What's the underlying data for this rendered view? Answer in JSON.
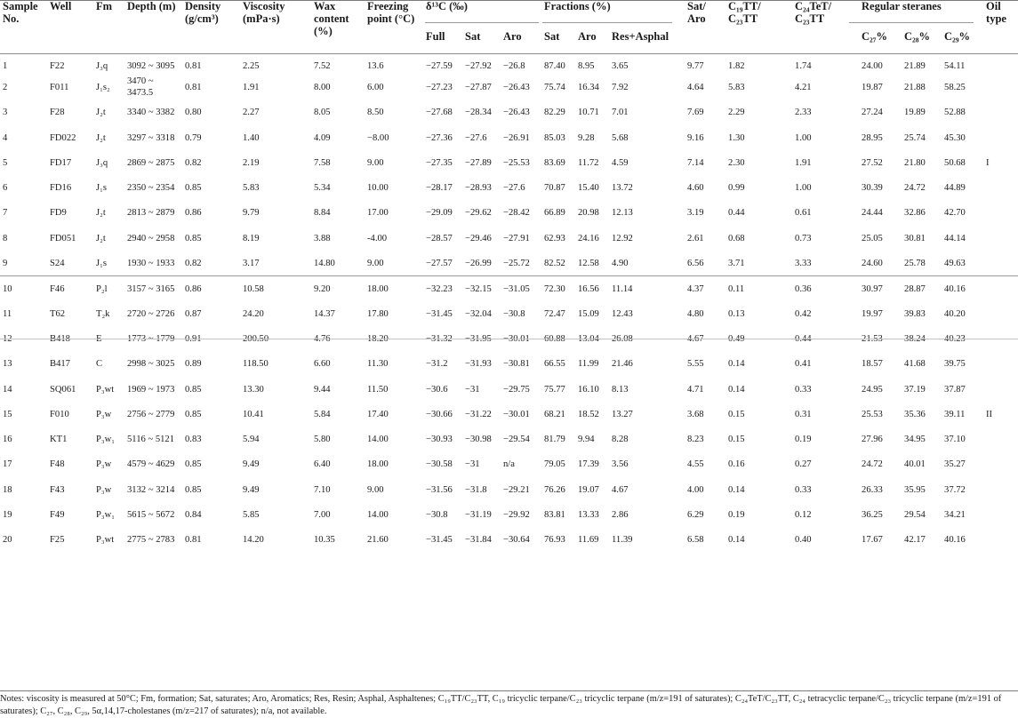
{
  "header": {
    "sample_no": "Sample No.",
    "well": "Well",
    "fm": "Fm",
    "depth": "Depth (m)",
    "density": "Density (g/cm³)",
    "viscosity": "Viscosity (mPa·s)",
    "wax": "Wax content (%)",
    "freezing": "Freezing point (°C)",
    "d13c": "δ¹³C (‰)",
    "d13c_full": "Full",
    "d13c_sat": "Sat",
    "d13c_aro": "Aro",
    "fractions": "Fractions (%)",
    "frac_sat": "Sat",
    "frac_aro": "Aro",
    "frac_res": "Res+Asphal",
    "sat_aro": "Sat/ Aro",
    "c19": "C₁₉TT/ C₂₃TT",
    "c24": "C₂₄TeT/ C₂₃TT",
    "steranes": "Regular steranes",
    "c27": "C₂₇%",
    "c28": "C₂₈%",
    "c29": "C₂₉%",
    "oil_type": "Oil type"
  },
  "rows": [
    {
      "no": "1",
      "well": "F22",
      "fm": "J₃q",
      "depth": "3092 ~ 3095",
      "density": "0.81",
      "viscosity": "2.25",
      "wax": "7.52",
      "freezing": "13.6",
      "full": "−27.59",
      "sat": "−27.92",
      "aro": "−26.8",
      "fsat": "87.40",
      "faro": "8.95",
      "fres": "3.65",
      "satAro": "9.77",
      "c19": "1.82",
      "c24": "1.74",
      "c27": "24.00",
      "c28": "21.89",
      "c29": "54.11",
      "type": ""
    },
    {
      "no": "2",
      "well": "F011",
      "fm": "J₁s₂",
      "depth": "3470 ~ 3473.5",
      "density": "0.81",
      "viscosity": "1.91",
      "wax": "8.00",
      "freezing": "6.00",
      "full": "−27.23",
      "sat": "−27.87",
      "aro": "−26.43",
      "fsat": "75.74",
      "faro": "16.34",
      "fres": "7.92",
      "satAro": "4.64",
      "c19": "5.83",
      "c24": "4.21",
      "c27": "19.87",
      "c28": "21.88",
      "c29": "58.25",
      "type": ""
    },
    {
      "no": "3",
      "well": "F28",
      "fm": "J₂t",
      "depth": "3340 ~ 3382",
      "density": "0.80",
      "viscosity": "2.27",
      "wax": "8.05",
      "freezing": "8.50",
      "full": "−27.68",
      "sat": "−28.34",
      "aro": "−26.43",
      "fsat": "82.29",
      "faro": "10.71",
      "fres": "7.01",
      "satAro": "7.69",
      "c19": "2.29",
      "c24": "2.33",
      "c27": "27.24",
      "c28": "19.89",
      "c29": "52.88",
      "type": ""
    },
    {
      "no": "4",
      "well": "FD022",
      "fm": "J₂t",
      "depth": "3297 ~ 3318",
      "density": "0.79",
      "viscosity": "1.40",
      "wax": "4.09",
      "freezing": "−8.00",
      "full": "−27.36",
      "sat": "−27.6",
      "aro": "−26.91",
      "fsat": "85.03",
      "faro": "9.28",
      "fres": "5.68",
      "satAro": "9.16",
      "c19": "1.30",
      "c24": "1.00",
      "c27": "28.95",
      "c28": "25.74",
      "c29": "45.30",
      "type": ""
    },
    {
      "no": "5",
      "well": "FD17",
      "fm": "J₃q",
      "depth": "2869 ~ 2875",
      "density": "0.82",
      "viscosity": "2.19",
      "wax": "7.58",
      "freezing": "9.00",
      "full": "−27.35",
      "sat": "−27.89",
      "aro": "−25.53",
      "fsat": "83.69",
      "faro": "11.72",
      "fres": "4.59",
      "satAro": "7.14",
      "c19": "2.30",
      "c24": "1.91",
      "c27": "27.52",
      "c28": "21.80",
      "c29": "50.68",
      "type": "I"
    },
    {
      "no": "6",
      "well": "FD16",
      "fm": "J₁s",
      "depth": "2350 ~ 2354",
      "density": "0.85",
      "viscosity": "5.83",
      "wax": "5.34",
      "freezing": "10.00",
      "full": "−28.17",
      "sat": "−28.93",
      "aro": "−27.6",
      "fsat": "70.87",
      "faro": "15.40",
      "fres": "13.72",
      "satAro": "4.60",
      "c19": "0.99",
      "c24": "1.00",
      "c27": "30.39",
      "c28": "24.72",
      "c29": "44.89",
      "type": ""
    },
    {
      "no": "7",
      "well": "FD9",
      "fm": "J₂t",
      "depth": "2813 ~ 2879",
      "density": "0.86",
      "viscosity": "9.79",
      "wax": "8.84",
      "freezing": "17.00",
      "full": "−29.09",
      "sat": "−29.62",
      "aro": "−28.42",
      "fsat": "66.89",
      "faro": "20.98",
      "fres": "12.13",
      "satAro": "3.19",
      "c19": "0.44",
      "c24": "0.61",
      "c27": "24.44",
      "c28": "32.86",
      "c29": "42.70",
      "type": ""
    },
    {
      "no": "8",
      "well": "FD051",
      "fm": "J₂t",
      "depth": "2940 ~ 2958",
      "density": "0.85",
      "viscosity": "8.19",
      "wax": "3.88",
      "freezing": "-4.00",
      "full": "−28.57",
      "sat": "−29.46",
      "aro": "−27.91",
      "fsat": "62.93",
      "faro": "24.16",
      "fres": "12.92",
      "satAro": "2.61",
      "c19": "0.68",
      "c24": "0.73",
      "c27": "25.05",
      "c28": "30.81",
      "c29": "44.14",
      "type": ""
    },
    {
      "no": "9",
      "well": "S24",
      "fm": "J₁s",
      "depth": "1930 ~ 1933",
      "density": "0.82",
      "viscosity": "3.17",
      "wax": "14.80",
      "freezing": "9.00",
      "full": "−27.57",
      "sat": "−26.99",
      "aro": "−25.72",
      "fsat": "82.52",
      "faro": "12.58",
      "fres": "4.90",
      "satAro": "6.56",
      "c19": "3.71",
      "c24": "3.33",
      "c27": "24.60",
      "c28": "25.78",
      "c29": "49.63",
      "type": ""
    },
    {
      "no": "10",
      "well": "F46",
      "fm": "P₂l",
      "depth": "3157 ~ 3165",
      "density": "0.86",
      "viscosity": "10.58",
      "wax": "9.20",
      "freezing": "18.00",
      "full": "−32.23",
      "sat": "−32.15",
      "aro": "−31.05",
      "fsat": "72.30",
      "faro": "16.56",
      "fres": "11.14",
      "satAro": "4.37",
      "c19": "0.11",
      "c24": "0.36",
      "c27": "30.97",
      "c28": "28.87",
      "c29": "40.16",
      "type": ""
    },
    {
      "no": "11",
      "well": "T62",
      "fm": "T₂k",
      "depth": "2720 ~ 2726",
      "density": "0.87",
      "viscosity": "24.20",
      "wax": "14.37",
      "freezing": "17.80",
      "full": "−31.45",
      "sat": "−32.04",
      "aro": "−30.8",
      "fsat": "72.47",
      "faro": "15.09",
      "fres": "12.43",
      "satAro": "4.80",
      "c19": "0.13",
      "c24": "0.42",
      "c27": "19.97",
      "c28": "39.83",
      "c29": "40.20",
      "type": ""
    },
    {
      "no": "12",
      "well": "B418",
      "fm": "E",
      "depth": "1773 ~ 1779",
      "density": "0.91",
      "viscosity": "200.50",
      "wax": "4.76",
      "freezing": "18.20",
      "full": "−31.32",
      "sat": "−31.95",
      "aro": "−30.01",
      "fsat": "60.88",
      "faro": "13.04",
      "fres": "26.08",
      "satAro": "4.67",
      "c19": "0.49",
      "c24": "0.44",
      "c27": "21.53",
      "c28": "38.24",
      "c29": "40.23",
      "type": ""
    },
    {
      "no": "13",
      "well": "B417",
      "fm": "C",
      "depth": "2998 ~ 3025",
      "density": "0.89",
      "viscosity": "118.50",
      "wax": "6.60",
      "freezing": "11.30",
      "full": "−31.2",
      "sat": "−31.93",
      "aro": "−30.81",
      "fsat": "66.55",
      "faro": "11.99",
      "fres": "21.46",
      "satAro": "5.55",
      "c19": "0.14",
      "c24": "0.41",
      "c27": "18.57",
      "c28": "41.68",
      "c29": "39.75",
      "type": ""
    },
    {
      "no": "14",
      "well": "SQ061",
      "fm": "P₃wt",
      "depth": "1969 ~ 1973",
      "density": "0.85",
      "viscosity": "13.30",
      "wax": "9.44",
      "freezing": "11.50",
      "full": "−30.6",
      "sat": "−31",
      "aro": "−29.75",
      "fsat": "75.77",
      "faro": "16.10",
      "fres": "8.13",
      "satAro": "4.71",
      "c19": "0.14",
      "c24": "0.33",
      "c27": "24.95",
      "c28": "37.19",
      "c29": "37.87",
      "type": ""
    },
    {
      "no": "15",
      "well": "F010",
      "fm": "P₃w",
      "depth": "2756 ~ 2779",
      "density": "0.85",
      "viscosity": "10.41",
      "wax": "5.84",
      "freezing": "17.40",
      "full": "−30.66",
      "sat": "−31.22",
      "aro": "−30.01",
      "fsat": "68.21",
      "faro": "18.52",
      "fres": "13.27",
      "satAro": "3.68",
      "c19": "0.15",
      "c24": "0.31",
      "c27": "25.53",
      "c28": "35.36",
      "c29": "39.11",
      "type": "II"
    },
    {
      "no": "16",
      "well": "KT1",
      "fm": "P₃w₁",
      "depth": "5116 ~ 5121",
      "density": "0.83",
      "viscosity": "5.94",
      "wax": "5.80",
      "freezing": "14.00",
      "full": "−30.93",
      "sat": "−30.98",
      "aro": "−29.54",
      "fsat": "81.79",
      "faro": "9.94",
      "fres": "8.28",
      "satAro": "8.23",
      "c19": "0.15",
      "c24": "0.19",
      "c27": "27.96",
      "c28": "34.95",
      "c29": "37.10",
      "type": ""
    },
    {
      "no": "17",
      "well": "F48",
      "fm": "P₃w",
      "depth": "4579 ~ 4629",
      "density": "0.85",
      "viscosity": "9.49",
      "wax": "6.40",
      "freezing": "18.00",
      "full": "−30.58",
      "sat": "−31",
      "aro": "n/a",
      "fsat": "79.05",
      "faro": "17.39",
      "fres": "3.56",
      "satAro": "4.55",
      "c19": "0.16",
      "c24": "0.27",
      "c27": "24.72",
      "c28": "40.01",
      "c29": "35.27",
      "type": ""
    },
    {
      "no": "18",
      "well": "F43",
      "fm": "P₃w",
      "depth": "3132 ~ 3214",
      "density": "0.85",
      "viscosity": "9.49",
      "wax": "7.10",
      "freezing": "9.00",
      "full": "−31.56",
      "sat": "−31.8",
      "aro": "−29.21",
      "fsat": "76.26",
      "faro": "19.07",
      "fres": "4.67",
      "satAro": "4.00",
      "c19": "0.14",
      "c24": "0.33",
      "c27": "26.33",
      "c28": "35.95",
      "c29": "37.72",
      "type": ""
    },
    {
      "no": "19",
      "well": "F49",
      "fm": "P₃w₁",
      "depth": "5615 ~ 5672",
      "density": "0.84",
      "viscosity": "5.85",
      "wax": "7.00",
      "freezing": "14.00",
      "full": "−30.8",
      "sat": "−31.19",
      "aro": "−29.92",
      "fsat": "83.81",
      "faro": "13.33",
      "fres": "2.86",
      "satAro": "6.29",
      "c19": "0.19",
      "c24": "0.12",
      "c27": "36.25",
      "c28": "29.54",
      "c29": "34.21",
      "type": ""
    },
    {
      "no": "20",
      "well": "F25",
      "fm": "P₃wt",
      "depth": "2775 ~ 2783",
      "density": "0.81",
      "viscosity": "14.20",
      "wax": "10.35",
      "freezing": "21.60",
      "full": "−31.45",
      "sat": "−31.84",
      "aro": "−30.64",
      "fsat": "76.93",
      "faro": "11.69",
      "fres": "11.39",
      "satAro": "6.58",
      "c19": "0.14",
      "c24": "0.40",
      "c27": "17.67",
      "c28": "42.17",
      "c29": "40.16",
      "type": ""
    }
  ],
  "notes": "Notes: viscosity is measured at 50°C; Fm, formation; Sat, saturates; Aro, Aromatics; Res, Resin; Asphal, Asphaltenes; C₁₉TT/C₂₃TT, C₁₉ tricyclic terpane/C₂₃ tricyclic terpane (m/z=191 of saturates); C₂₄TeT/C₂₃TT, C₂₄ tetracyclic terpane/C₂₃ tricyclic terpane (m/z=191 of saturates); C₂₇, C₂₈, C₂₉, 5α,14,17-cholestanes (m/z=217 of saturates); n/a, not available."
}
